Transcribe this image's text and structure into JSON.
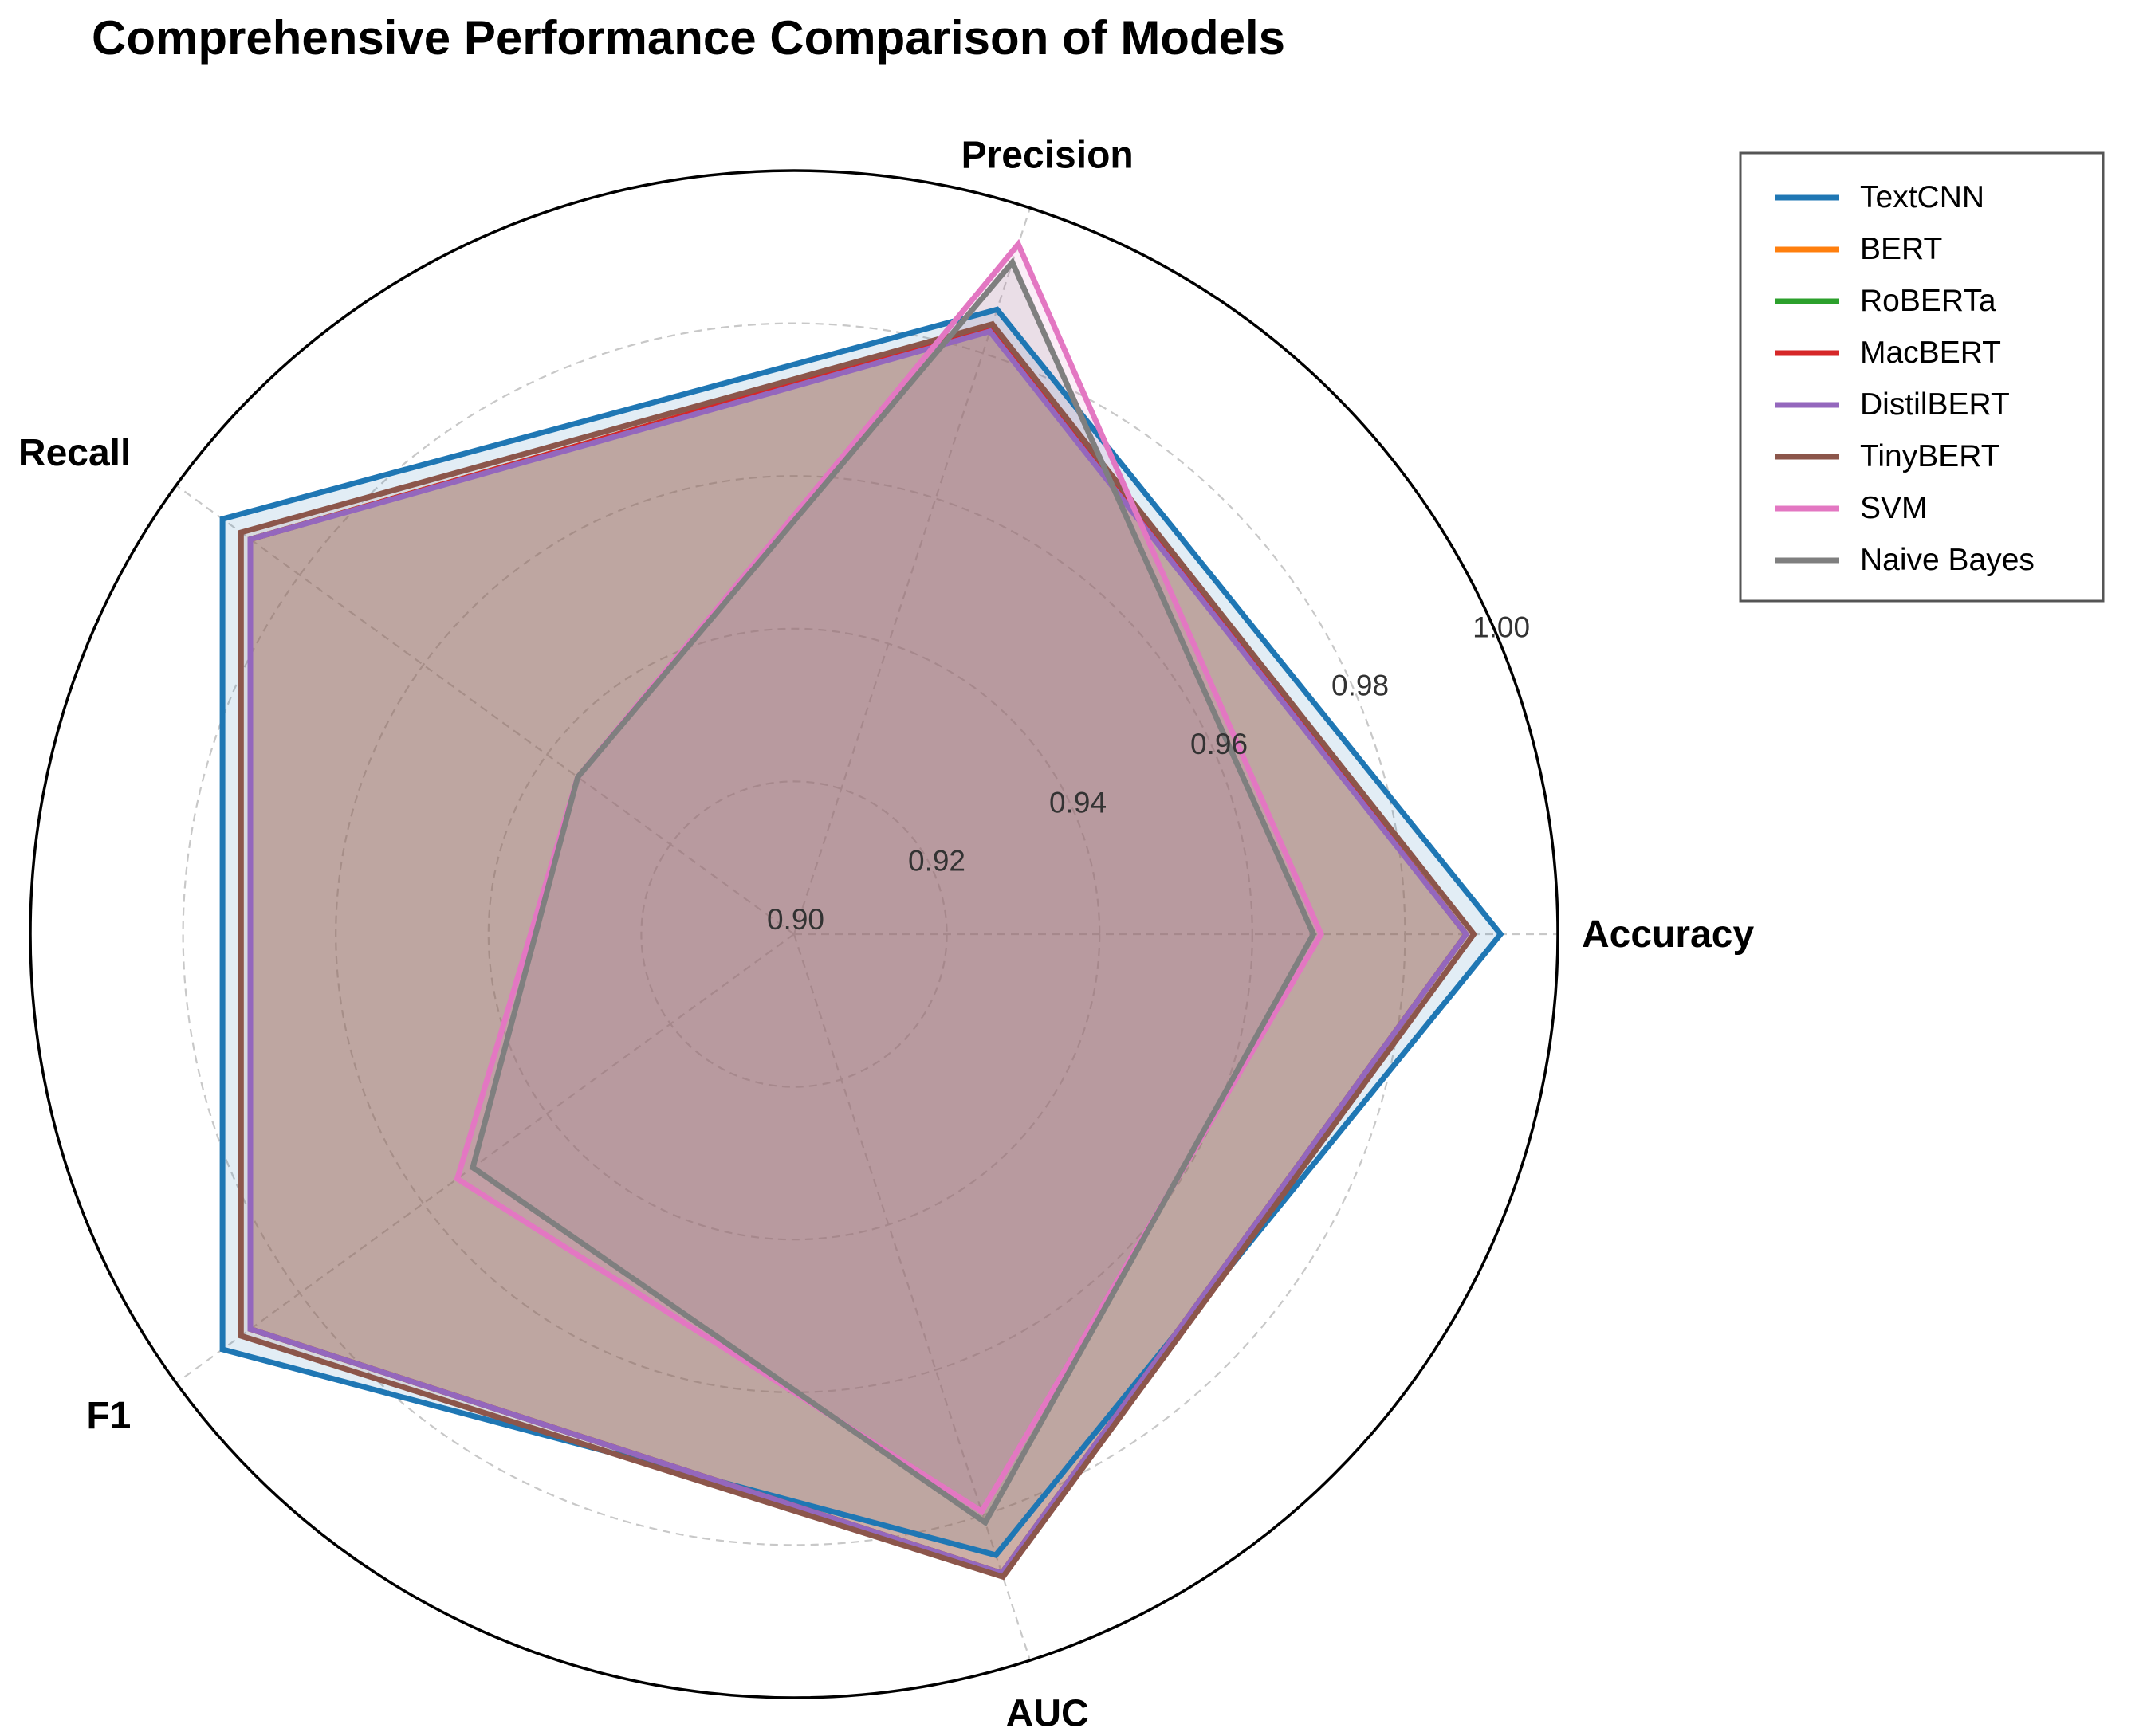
{
  "chart_data": {
    "type": "radar",
    "title": "Comprehensive Performance Comparison of Models",
    "axes": [
      "Accuracy",
      "Precision",
      "Recall",
      "F1",
      "AUC"
    ],
    "rlim": [
      0.9,
      1.0
    ],
    "rticks": [
      "0.90",
      "0.92",
      "0.94",
      "0.96",
      "0.98",
      "1.00"
    ],
    "grid": true,
    "legend_position": "top-right outside",
    "series": [
      {
        "name": "TextCNN",
        "color": "#1f77b4",
        "values": [
          0.9925,
          0.986,
          0.9925,
          0.9925,
          0.9855
        ]
      },
      {
        "name": "BERT",
        "color": "#ff7f0e",
        "values": [
          0.988,
          0.9835,
          0.988,
          0.988,
          0.988
        ]
      },
      {
        "name": "RoBERTa",
        "color": "#2ca02c",
        "values": [
          0.988,
          0.9835,
          0.988,
          0.988,
          0.988
        ]
      },
      {
        "name": "MacBERT",
        "color": "#d62728",
        "values": [
          0.988,
          0.9835,
          0.988,
          0.988,
          0.988
        ]
      },
      {
        "name": "DistilBERT",
        "color": "#9467bd",
        "values": [
          0.988,
          0.983,
          0.988,
          0.988,
          0.988
        ]
      },
      {
        "name": "TinyBERT",
        "color": "#8c564b",
        "values": [
          0.989,
          0.984,
          0.9895,
          0.9895,
          0.9885
        ]
      },
      {
        "name": "SVM",
        "color": "#e377c2",
        "values": [
          0.969,
          0.995,
          0.935,
          0.9545,
          0.9795
        ]
      },
      {
        "name": "Naive Bayes",
        "color": "#7f7f7f",
        "values": [
          0.968,
          0.9925,
          0.935,
          0.952,
          0.981
        ]
      }
    ]
  }
}
